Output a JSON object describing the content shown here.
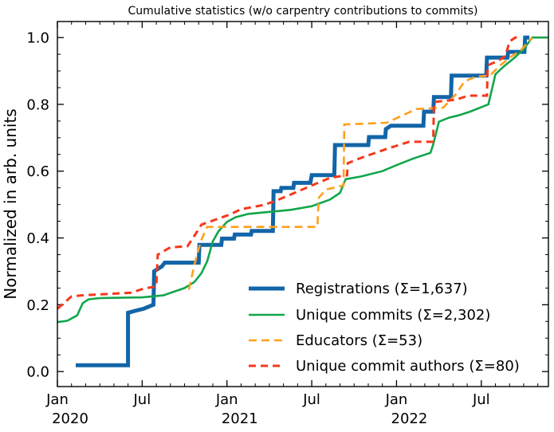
{
  "chart_data": {
    "type": "line",
    "title": "Cumulative statistics (w/o carpentry contributions to commits)",
    "xlabel": "",
    "ylabel": "Normalized in arb. units",
    "grid": false,
    "legend_position": "lower right inside",
    "x_unit": "months since Jan 2020 (0 = Jan 2020)",
    "x_axis": {
      "lim": [
        0,
        34.75
      ],
      "minor_step": 1,
      "major_ticks": [
        {
          "t": 0,
          "label": "Jan",
          "year": "2020"
        },
        {
          "t": 6,
          "label": "Jul",
          "year": ""
        },
        {
          "t": 12,
          "label": "Jan",
          "year": "2021"
        },
        {
          "t": 18,
          "label": "Jul",
          "year": ""
        },
        {
          "t": 24,
          "label": "Jan",
          "year": "2022"
        },
        {
          "t": 30,
          "label": "Jul",
          "year": ""
        }
      ]
    },
    "y_axis": {
      "lim": [
        -0.045,
        1.048
      ],
      "minor_step": 0.05,
      "major_ticks": [
        0.0,
        0.2,
        0.4,
        0.6,
        0.8,
        1.0
      ]
    },
    "series": [
      {
        "name": "registrations",
        "label": "Registrations  (Σ=1,637)",
        "total": 1637,
        "color": "#1265a8",
        "width": 5,
        "dash": "none",
        "points": [
          [
            1.3,
            0.019
          ],
          [
            5.0,
            0.019
          ],
          [
            5.0,
            0.176
          ],
          [
            5.6,
            0.183
          ],
          [
            6.1,
            0.188
          ],
          [
            6.5,
            0.195
          ],
          [
            6.8,
            0.2
          ],
          [
            6.85,
            0.3
          ],
          [
            7.4,
            0.315
          ],
          [
            7.6,
            0.326
          ],
          [
            10.0,
            0.326
          ],
          [
            10.05,
            0.379
          ],
          [
            11.6,
            0.379
          ],
          [
            11.65,
            0.398
          ],
          [
            12.5,
            0.398
          ],
          [
            12.55,
            0.41
          ],
          [
            13.7,
            0.41
          ],
          [
            13.75,
            0.421
          ],
          [
            15.25,
            0.421
          ],
          [
            15.3,
            0.54
          ],
          [
            15.8,
            0.54
          ],
          [
            15.85,
            0.55
          ],
          [
            16.7,
            0.55
          ],
          [
            16.75,
            0.565
          ],
          [
            17.9,
            0.565
          ],
          [
            18.0,
            0.588
          ],
          [
            19.6,
            0.588
          ],
          [
            19.65,
            0.678
          ],
          [
            22.0,
            0.678
          ],
          [
            22.05,
            0.702
          ],
          [
            23.2,
            0.702
          ],
          [
            23.25,
            0.726
          ],
          [
            23.6,
            0.736
          ],
          [
            25.9,
            0.736
          ],
          [
            25.95,
            0.778
          ],
          [
            26.6,
            0.778
          ],
          [
            26.65,
            0.822
          ],
          [
            27.85,
            0.822
          ],
          [
            27.9,
            0.886
          ],
          [
            30.35,
            0.886
          ],
          [
            30.4,
            0.94
          ],
          [
            31.85,
            0.94
          ],
          [
            31.9,
            0.957
          ],
          [
            33.05,
            0.957
          ],
          [
            33.1,
            1.0
          ],
          [
            33.4,
            1.0
          ]
        ]
      },
      {
        "name": "unique-commits",
        "label": "Unique commits (Σ=2,302)",
        "total": 2302,
        "color": "#12a64b",
        "width": 2.6,
        "dash": "none",
        "points": [
          [
            0,
            0.148
          ],
          [
            0.7,
            0.152
          ],
          [
            1.4,
            0.168
          ],
          [
            1.8,
            0.205
          ],
          [
            2.2,
            0.216
          ],
          [
            3.0,
            0.22
          ],
          [
            6.0,
            0.222
          ],
          [
            7.5,
            0.228
          ],
          [
            8.3,
            0.24
          ],
          [
            9.0,
            0.25
          ],
          [
            9.7,
            0.268
          ],
          [
            10.2,
            0.295
          ],
          [
            10.6,
            0.33
          ],
          [
            11.0,
            0.39
          ],
          [
            11.4,
            0.42
          ],
          [
            12.0,
            0.448
          ],
          [
            12.6,
            0.462
          ],
          [
            13.5,
            0.472
          ],
          [
            15.0,
            0.478
          ],
          [
            16.5,
            0.484
          ],
          [
            18.0,
            0.495
          ],
          [
            19.3,
            0.515
          ],
          [
            20.0,
            0.535
          ],
          [
            20.4,
            0.576
          ],
          [
            21.5,
            0.584
          ],
          [
            23.0,
            0.6
          ],
          [
            24.0,
            0.618
          ],
          [
            25.2,
            0.638
          ],
          [
            26.4,
            0.655
          ],
          [
            26.6,
            0.68
          ],
          [
            27.0,
            0.748
          ],
          [
            27.7,
            0.76
          ],
          [
            28.4,
            0.767
          ],
          [
            29.2,
            0.778
          ],
          [
            30.5,
            0.8
          ],
          [
            31.0,
            0.89
          ],
          [
            31.6,
            0.914
          ],
          [
            32.3,
            0.938
          ],
          [
            33.0,
            0.965
          ],
          [
            33.6,
            1.0
          ],
          [
            34.7,
            1.0
          ]
        ]
      },
      {
        "name": "educators",
        "label": "Educators (Σ=53)",
        "total": 53,
        "color": "#ff9f1c",
        "width": 2.6,
        "dash": "10 6",
        "points": [
          [
            9.3,
            0.245
          ],
          [
            9.7,
            0.32
          ],
          [
            10.15,
            0.39
          ],
          [
            10.6,
            0.433
          ],
          [
            18.4,
            0.433
          ],
          [
            18.5,
            0.52
          ],
          [
            19.0,
            0.545
          ],
          [
            20.25,
            0.557
          ],
          [
            20.3,
            0.74
          ],
          [
            23.3,
            0.745
          ],
          [
            25.4,
            0.786
          ],
          [
            27.3,
            0.79
          ],
          [
            28.2,
            0.83
          ],
          [
            28.8,
            0.868
          ],
          [
            29.6,
            0.883
          ],
          [
            30.6,
            0.886
          ],
          [
            31.3,
            0.915
          ],
          [
            32.0,
            0.94
          ],
          [
            32.8,
            0.962
          ],
          [
            33.6,
            1.0
          ]
        ]
      },
      {
        "name": "unique-commit-authors",
        "label": "Unique commit authors (Σ=80)",
        "total": 80,
        "color": "#f6381b",
        "width": 3,
        "dash": "9 6",
        "points": [
          [
            0,
            0.188
          ],
          [
            1.0,
            0.225
          ],
          [
            1.7,
            0.228
          ],
          [
            5.2,
            0.236
          ],
          [
            6.1,
            0.248
          ],
          [
            7.0,
            0.255
          ],
          [
            7.1,
            0.35
          ],
          [
            8.0,
            0.372
          ],
          [
            9.2,
            0.375
          ],
          [
            9.6,
            0.4
          ],
          [
            10.2,
            0.44
          ],
          [
            11.2,
            0.455
          ],
          [
            12.2,
            0.47
          ],
          [
            13.0,
            0.486
          ],
          [
            14.5,
            0.498
          ],
          [
            15.4,
            0.51
          ],
          [
            16.5,
            0.53
          ],
          [
            18.0,
            0.557
          ],
          [
            19.3,
            0.58
          ],
          [
            20.5,
            0.588
          ],
          [
            20.55,
            0.624
          ],
          [
            21.5,
            0.64
          ],
          [
            23.4,
            0.668
          ],
          [
            24.9,
            0.688
          ],
          [
            26.6,
            0.688
          ],
          [
            26.65,
            0.807
          ],
          [
            28.2,
            0.814
          ],
          [
            29.1,
            0.826
          ],
          [
            30.4,
            0.826
          ],
          [
            30.45,
            0.917
          ],
          [
            31.2,
            0.93
          ],
          [
            31.7,
            0.945
          ],
          [
            32.0,
            0.988
          ],
          [
            32.4,
            1.0
          ],
          [
            32.7,
            1.0
          ]
        ]
      }
    ]
  }
}
